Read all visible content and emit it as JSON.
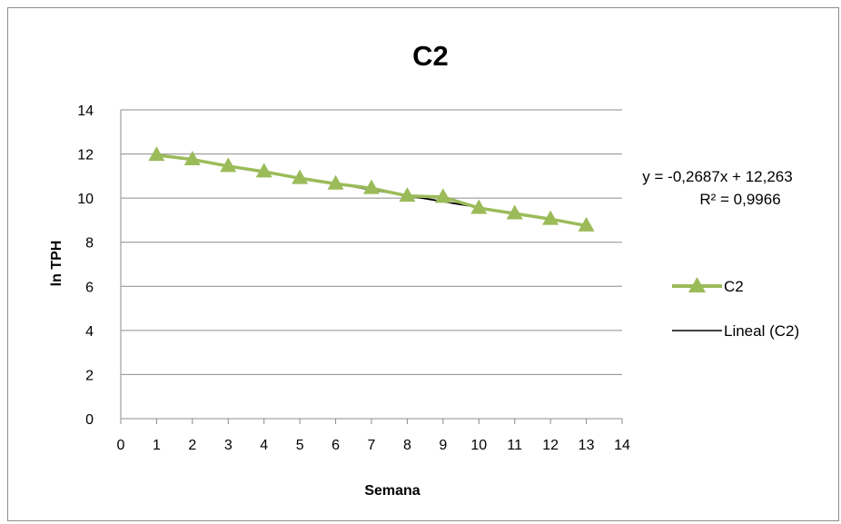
{
  "chart_data": {
    "type": "scatter",
    "title": "C2",
    "xlabel": "Semana",
    "ylabel": "ln TPH",
    "xlim": [
      0,
      14
    ],
    "ylim": [
      0,
      14
    ],
    "xticks": [
      "0",
      "1",
      "2",
      "3",
      "4",
      "5",
      "6",
      "7",
      "8",
      "9",
      "10",
      "11",
      "12",
      "13",
      "14"
    ],
    "yticks": [
      "0",
      "2",
      "4",
      "6",
      "8",
      "10",
      "12",
      "14"
    ],
    "grid": "horizontal",
    "legend_position": "right",
    "series": [
      {
        "name": "C2",
        "color": "#9bbb59",
        "marker": "triangle",
        "x": [
          1,
          2,
          3,
          4,
          5,
          6,
          7,
          8,
          9,
          10,
          11,
          12,
          13
        ],
        "y": [
          11.95,
          11.75,
          11.45,
          11.2,
          10.9,
          10.65,
          10.45,
          10.1,
          10.05,
          9.55,
          9.3,
          9.05,
          8.75
        ]
      }
    ],
    "trendline": {
      "name": "Lineal (C2)",
      "color": "#000000",
      "slope": -0.2687,
      "intercept": 12.263,
      "x_range": [
        1,
        13
      ],
      "equation": "y = -0,2687x + 12,263",
      "r_squared": "R² = 0,9966"
    }
  }
}
